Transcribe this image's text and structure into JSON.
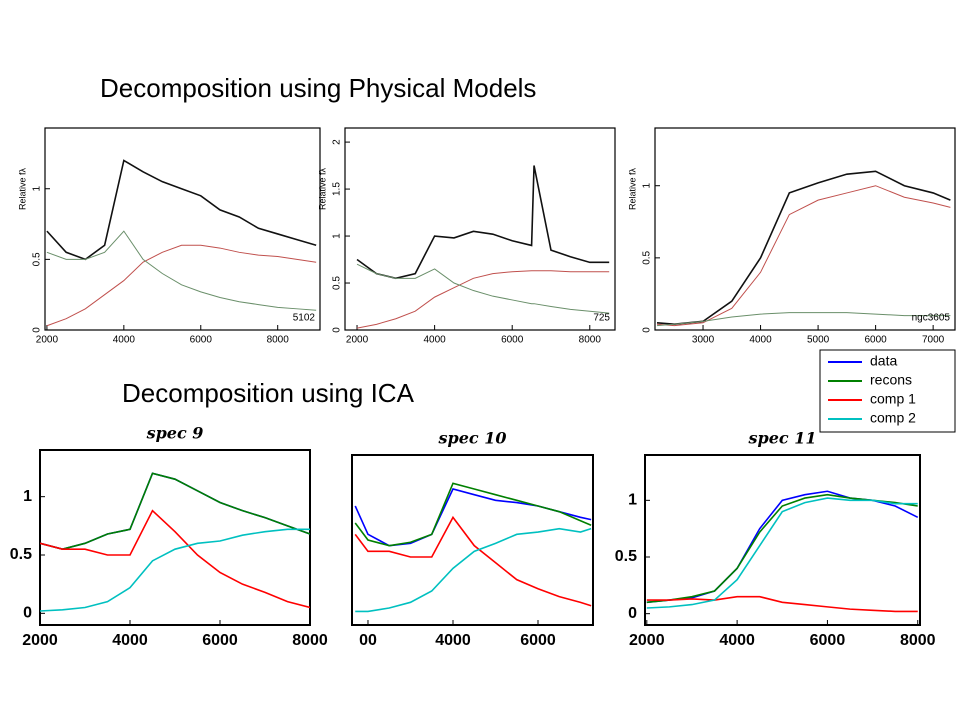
{
  "headings": [
    "Decomposition using Physical Models",
    "Decomposition using ICA"
  ],
  "chart_data": [
    {
      "type": "line",
      "ylabel": "Relative fλ",
      "annotation": "5102",
      "x": [
        2000,
        2500,
        3000,
        3500,
        4000,
        4500,
        5000,
        5500,
        6000,
        6500,
        7000,
        7500,
        8000,
        8500,
        9000
      ],
      "series": [
        {
          "color": "#111111",
          "values": [
            0.7,
            0.55,
            0.5,
            0.6,
            1.2,
            1.12,
            1.05,
            1.0,
            0.95,
            0.85,
            0.8,
            0.72,
            0.68,
            0.64,
            0.6
          ]
        },
        {
          "color": "#c0504d",
          "values": [
            0.03,
            0.08,
            0.15,
            0.25,
            0.35,
            0.48,
            0.55,
            0.6,
            0.6,
            0.58,
            0.55,
            0.53,
            0.52,
            0.5,
            0.48
          ]
        },
        {
          "color": "#6a8f6a",
          "values": [
            0.55,
            0.5,
            0.5,
            0.55,
            0.7,
            0.5,
            0.4,
            0.32,
            0.27,
            0.23,
            0.2,
            0.18,
            0.16,
            0.15,
            0.14
          ]
        }
      ],
      "xlim": [
        1950,
        9100
      ],
      "ylim": [
        0,
        1.43
      ],
      "xticks": [
        2000,
        4000,
        6000,
        8000
      ],
      "yticks": [
        0,
        0.5,
        1
      ]
    },
    {
      "type": "line",
      "ylabel": "Relative fλ",
      "annotation": "725",
      "x": [
        2000,
        2500,
        3000,
        3500,
        4000,
        4500,
        5000,
        5500,
        6000,
        6500,
        6563,
        7000,
        7500,
        8000,
        8500
      ],
      "series": [
        {
          "color": "#111111",
          "values": [
            0.75,
            0.6,
            0.55,
            0.6,
            1.0,
            0.98,
            1.05,
            1.02,
            0.95,
            0.9,
            1.75,
            0.85,
            0.78,
            0.72,
            0.72
          ]
        },
        {
          "color": "#c0504d",
          "values": [
            0.02,
            0.06,
            0.12,
            0.2,
            0.35,
            0.45,
            0.55,
            0.6,
            0.62,
            0.63,
            0.63,
            0.63,
            0.62,
            0.62,
            0.62
          ]
        },
        {
          "color": "#6a8f6a",
          "values": [
            0.7,
            0.6,
            0.55,
            0.55,
            0.65,
            0.5,
            0.42,
            0.36,
            0.32,
            0.28,
            0.28,
            0.25,
            0.22,
            0.2,
            0.18
          ]
        }
      ],
      "xlim": [
        1690,
        8650
      ],
      "ylim": [
        0,
        2.15
      ],
      "xticks": [
        2000,
        4000,
        6000,
        8000
      ],
      "yticks": [
        0,
        0.5,
        1,
        1.5,
        2
      ]
    },
    {
      "type": "line",
      "ylabel": "Relative fλ",
      "annotation": "ngc3605",
      "x": [
        2200,
        2500,
        3000,
        3500,
        4000,
        4500,
        5000,
        5500,
        6000,
        6500,
        7000,
        7300
      ],
      "series": [
        {
          "color": "#111111",
          "values": [
            0.05,
            0.04,
            0.06,
            0.2,
            0.5,
            0.95,
            1.02,
            1.08,
            1.1,
            1.0,
            0.95,
            0.9
          ]
        },
        {
          "color": "#c0504d",
          "values": [
            0.04,
            0.03,
            0.05,
            0.15,
            0.4,
            0.8,
            0.9,
            0.95,
            1.0,
            0.92,
            0.88,
            0.85
          ]
        },
        {
          "color": "#6a8f6a",
          "values": [
            0.03,
            0.04,
            0.06,
            0.09,
            0.11,
            0.12,
            0.12,
            0.12,
            0.11,
            0.1,
            0.1,
            0.1
          ]
        }
      ],
      "xlim": [
        2165,
        7380
      ],
      "ylim": [
        0,
        1.4
      ],
      "xticks": [
        3000,
        4000,
        5000,
        6000,
        7000
      ],
      "yticks": [
        0,
        0.5,
        1
      ]
    },
    {
      "type": "line",
      "title": "spec 9",
      "x": [
        2000,
        2500,
        3000,
        3500,
        4000,
        4500,
        5000,
        5500,
        6000,
        6500,
        7000,
        7500,
        8000
      ],
      "series": [
        {
          "color": "#0000ff",
          "values": [
            0.6,
            0.55,
            0.6,
            0.68,
            0.72,
            1.2,
            1.15,
            1.05,
            0.95,
            0.88,
            0.82,
            0.75,
            0.68
          ]
        },
        {
          "color": "#008000",
          "values": [
            0.6,
            0.55,
            0.6,
            0.68,
            0.72,
            1.2,
            1.15,
            1.05,
            0.95,
            0.88,
            0.82,
            0.75,
            0.68
          ]
        },
        {
          "color": "#ff0000",
          "values": [
            0.6,
            0.55,
            0.55,
            0.5,
            0.5,
            0.88,
            0.7,
            0.5,
            0.35,
            0.25,
            0.18,
            0.1,
            0.05
          ]
        },
        {
          "color": "#00c0c0",
          "values": [
            0.02,
            0.03,
            0.05,
            0.1,
            0.22,
            0.45,
            0.55,
            0.6,
            0.62,
            0.67,
            0.7,
            0.72,
            0.72
          ]
        }
      ],
      "xlim": [
        2000,
        8000
      ],
      "ylim": [
        -0.1,
        1.4
      ],
      "xticks": [
        2000,
        4000,
        6000,
        8000
      ],
      "yticks": [
        0,
        0.5,
        1
      ]
    },
    {
      "type": "line",
      "title": "spec 10",
      "x": [
        1700,
        2000,
        2500,
        3000,
        3500,
        4000,
        4500,
        5000,
        5500,
        6000,
        6500,
        7000,
        7250
      ],
      "series": [
        {
          "color": "#0000ff",
          "values": [
            0.95,
            0.7,
            0.6,
            0.62,
            0.7,
            1.1,
            1.05,
            1.0,
            0.98,
            0.95,
            0.9,
            0.85,
            0.83
          ]
        },
        {
          "color": "#008000",
          "values": [
            0.8,
            0.65,
            0.6,
            0.63,
            0.7,
            1.15,
            1.1,
            1.05,
            1.0,
            0.95,
            0.9,
            0.82,
            0.78
          ]
        },
        {
          "color": "#ff0000",
          "values": [
            0.7,
            0.55,
            0.55,
            0.5,
            0.5,
            0.85,
            0.6,
            0.45,
            0.3,
            0.22,
            0.15,
            0.1,
            0.07
          ]
        },
        {
          "color": "#00c0c0",
          "values": [
            0.02,
            0.02,
            0.05,
            0.1,
            0.2,
            0.4,
            0.55,
            0.62,
            0.7,
            0.72,
            0.75,
            0.72,
            0.75
          ]
        }
      ],
      "xlim": [
        1624,
        7294
      ],
      "ylim": [
        -0.1,
        1.4
      ],
      "xticks": [
        {
          "value": 2000,
          "label": "00"
        },
        4000,
        6000
      ]
    },
    {
      "type": "line",
      "title": "spec 11",
      "x": [
        2000,
        2500,
        3000,
        3500,
        4000,
        4500,
        5000,
        5500,
        6000,
        6500,
        7000,
        7500,
        8000
      ],
      "series": [
        {
          "name": "data",
          "color": "#0000ff",
          "values": [
            0.1,
            0.12,
            0.14,
            0.2,
            0.4,
            0.75,
            1.0,
            1.05,
            1.08,
            1.02,
            1.0,
            0.95,
            0.85
          ]
        },
        {
          "name": "recons",
          "color": "#008000",
          "values": [
            0.1,
            0.12,
            0.15,
            0.2,
            0.4,
            0.72,
            0.95,
            1.02,
            1.05,
            1.02,
            1.0,
            0.98,
            0.95
          ]
        },
        {
          "name": "comp 1",
          "color": "#ff0000",
          "values": [
            0.12,
            0.12,
            0.13,
            0.12,
            0.15,
            0.15,
            0.1,
            0.08,
            0.06,
            0.04,
            0.03,
            0.02,
            0.02
          ]
        },
        {
          "name": "comp 2",
          "color": "#00c0c0",
          "values": [
            0.05,
            0.06,
            0.08,
            0.12,
            0.3,
            0.6,
            0.9,
            0.98,
            1.02,
            1.0,
            1.0,
            0.97,
            0.97
          ]
        }
      ],
      "xlim": [
        1960,
        8050
      ],
      "ylim": [
        -0.1,
        1.4
      ],
      "xticks": [
        2000,
        4000,
        6000,
        8000
      ],
      "yticks": [
        0,
        0.5,
        1
      ]
    }
  ]
}
